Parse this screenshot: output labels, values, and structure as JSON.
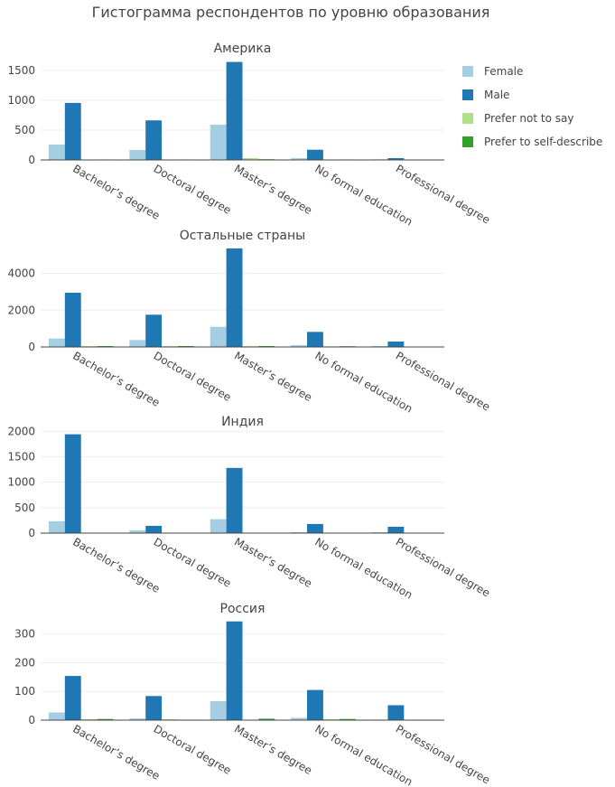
{
  "title": "Гистограмма респондентов по уровню образования",
  "colors": {
    "Female": "#a6cee3",
    "Male": "#1f78b4",
    "Prefer not to say": "#b2df8a",
    "Prefer to self-describe": "#33a02c"
  },
  "legend": [
    "Female",
    "Male",
    "Prefer not to say",
    "Prefer to self-describe"
  ],
  "chart_data": [
    {
      "type": "bar",
      "title": "Америка",
      "categories": [
        "Bachelor’s degree",
        "Doctoral degree",
        "Master’s degree",
        "No formal education",
        "Professional degree"
      ],
      "ylim": [
        0,
        1740
      ],
      "yticks": [
        0,
        500,
        1000,
        1500
      ],
      "series": [
        {
          "name": "Female",
          "values": [
            258,
            167,
            591,
            30,
            10
          ]
        },
        {
          "name": "Male",
          "values": [
            955,
            662,
            1641,
            171,
            30
          ]
        },
        {
          "name": "Prefer not to say",
          "values": [
            5,
            5,
            30,
            5,
            2
          ]
        },
        {
          "name": "Prefer to self-describe",
          "values": [
            8,
            8,
            12,
            8,
            1
          ]
        }
      ]
    },
    {
      "type": "bar",
      "title": "Остальные страны",
      "categories": [
        "Bachelor’s degree",
        "Doctoral degree",
        "Master’s degree",
        "No formal education",
        "Professional degree"
      ],
      "ylim": [
        0,
        5650
      ],
      "yticks": [
        0,
        2000,
        4000
      ],
      "series": [
        {
          "name": "Female",
          "values": [
            459,
            377,
            1098,
            98,
            49
          ]
        },
        {
          "name": "Male",
          "values": [
            2951,
            1754,
            5361,
            820,
            295
          ]
        },
        {
          "name": "Prefer not to say",
          "values": [
            40,
            40,
            40,
            30,
            20
          ]
        },
        {
          "name": "Prefer to self-describe",
          "values": [
            50,
            50,
            50,
            40,
            0
          ]
        }
      ]
    },
    {
      "type": "bar",
      "title": "Индия",
      "categories": [
        "Bachelor’s degree",
        "Doctoral degree",
        "Master’s degree",
        "No formal education",
        "Professional degree"
      ],
      "ylim": [
        0,
        2040
      ],
      "yticks": [
        0,
        500,
        1000,
        1500,
        2000
      ],
      "series": [
        {
          "name": "Female",
          "values": [
            232,
            54,
            274,
            18,
            18
          ]
        },
        {
          "name": "Male",
          "values": [
            1940,
            143,
            1280,
            179,
            125
          ]
        },
        {
          "name": "Prefer not to say",
          "values": [
            6,
            4,
            6,
            4,
            0
          ]
        },
        {
          "name": "Prefer to self-describe",
          "values": [
            3,
            2,
            3,
            0,
            0
          ]
        }
      ]
    },
    {
      "type": "bar",
      "title": "Россия",
      "categories": [
        "Bachelor’s degree",
        "Doctoral degree",
        "Master’s degree",
        "No formal education",
        "Professional degree"
      ],
      "ylim": [
        0,
        362
      ],
      "yticks": [
        0,
        100,
        200,
        300
      ],
      "series": [
        {
          "name": "Female",
          "values": [
            27,
            6,
            66,
            8,
            2
          ]
        },
        {
          "name": "Male",
          "values": [
            154,
            84,
            344,
            105,
            52
          ]
        },
        {
          "name": "Prefer not to say",
          "values": [
            3,
            3,
            0,
            3,
            0
          ]
        },
        {
          "name": "Prefer to self-describe",
          "values": [
            4,
            0,
            5,
            4,
            0
          ]
        }
      ]
    }
  ]
}
